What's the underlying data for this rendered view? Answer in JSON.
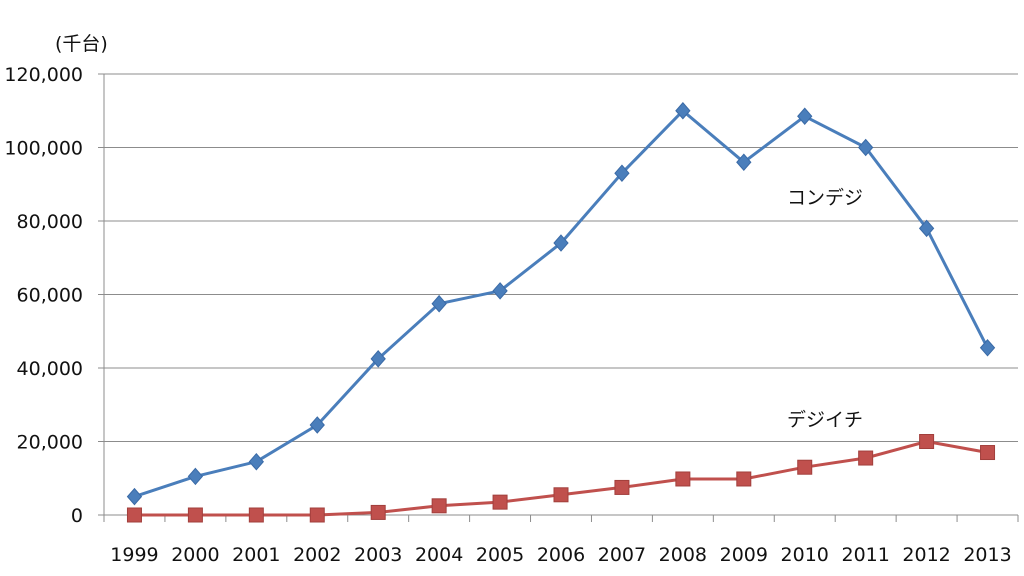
{
  "chart_data": {
    "type": "line",
    "unit_label": "(千台)",
    "categories": [
      "1999",
      "2000",
      "2001",
      "2002",
      "2003",
      "2004",
      "2005",
      "2006",
      "2007",
      "2008",
      "2009",
      "2010",
      "2011",
      "2012",
      "2013"
    ],
    "y_ticks": [
      "0",
      "20,000",
      "40,000",
      "60,000",
      "80,000",
      "100,000",
      "120,000"
    ],
    "ylim": [
      0,
      120000
    ],
    "grid": true,
    "series": [
      {
        "name": "コンデジ",
        "color": "#4a7ebb",
        "marker": "diamond",
        "values": [
          5000,
          10500,
          14500,
          24500,
          42500,
          57500,
          61000,
          74000,
          93000,
          110000,
          96000,
          108500,
          100000,
          78000,
          45500
        ]
      },
      {
        "name": "デジイチ",
        "color": "#c0504d",
        "marker": "square",
        "values": [
          0,
          0,
          0,
          0,
          700,
          2500,
          3500,
          5500,
          7500,
          9800,
          9800,
          13000,
          15500,
          20000,
          17000
        ]
      }
    ]
  }
}
